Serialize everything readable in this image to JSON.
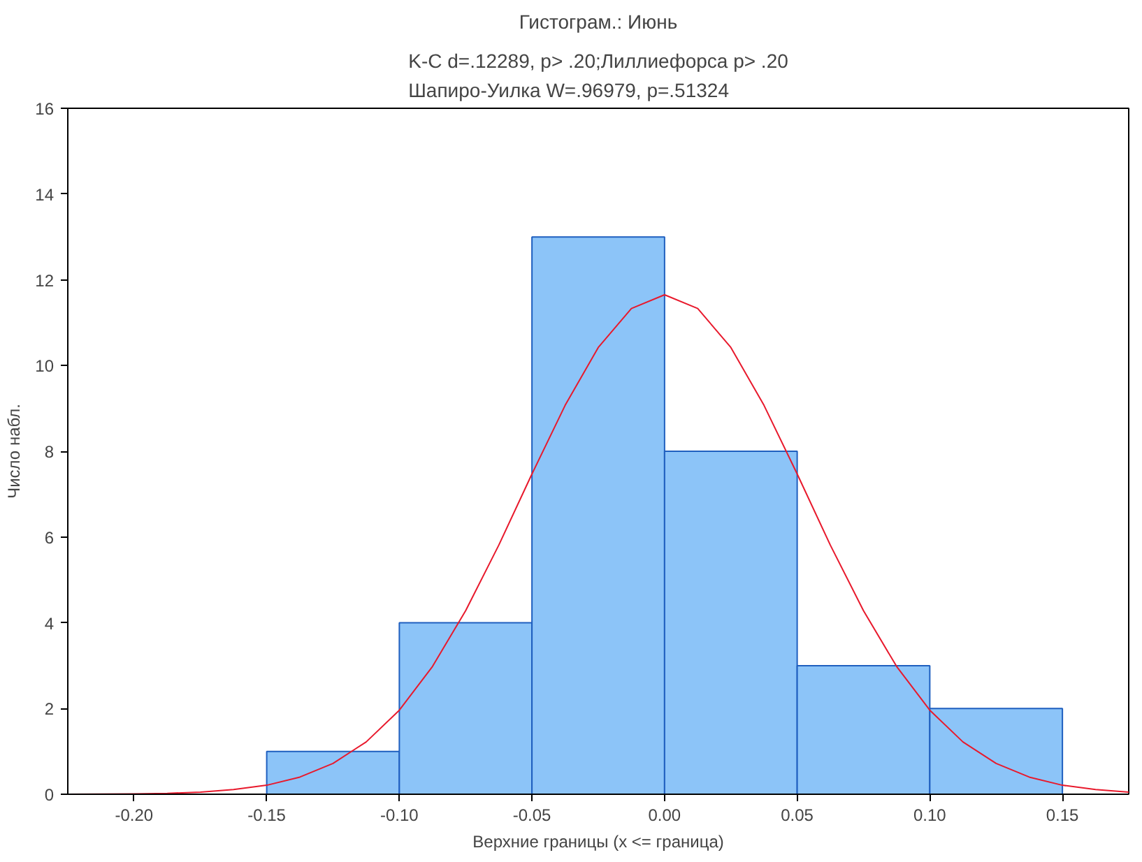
{
  "chart_data": {
    "type": "histogram",
    "title": "Гистограм.: Июнь",
    "subtitle": "K-C d=.12289, p> .20;Лиллиефорса p> .20\nШапиро-Уилка W=.96979, p=.51324",
    "xlabel": "Верхние границы (x <= граница)",
    "ylabel": "Число набл.",
    "bins": [
      -0.15,
      -0.1,
      -0.05,
      0.0,
      0.05,
      0.1,
      0.15
    ],
    "values": [
      1,
      4,
      13,
      8,
      3,
      2
    ],
    "color": "#8cc4f8",
    "series": [
      {
        "type": "line",
        "color": "#e8192c",
        "x": [
          -0.225,
          -0.2,
          -0.1875,
          -0.175,
          -0.1625,
          -0.15,
          -0.1375,
          -0.125,
          -0.1125,
          -0.1,
          -0.0875,
          -0.075,
          -0.0625,
          -0.05,
          -0.0375,
          -0.025,
          -0.0125,
          0.0,
          0.0125,
          0.025,
          0.0375,
          0.05,
          0.0625,
          0.075,
          0.0875,
          0.1,
          0.1125,
          0.125,
          0.1375,
          0.15,
          0.1625,
          0.175
        ],
        "values": [
          0.0,
          0.01,
          0.02,
          0.05,
          0.11,
          0.21,
          0.4,
          0.72,
          1.22,
          1.96,
          2.98,
          4.28,
          5.81,
          7.47,
          9.07,
          10.42,
          11.33,
          11.65,
          11.33,
          10.42,
          9.07,
          7.47,
          5.81,
          4.28,
          2.98,
          1.96,
          1.22,
          0.72,
          0.4,
          0.21,
          0.11,
          0.05
        ]
      }
    ],
    "xlim": [
      -0.225,
      0.175
    ],
    "ylim": [
      0,
      16
    ],
    "xticks": [
      {
        "value": -0.2,
        "label": "-0.20"
      },
      {
        "value": -0.15,
        "label": "-0.15"
      },
      {
        "value": -0.1,
        "label": "-0.10"
      },
      {
        "value": -0.05,
        "label": "-0.05"
      },
      {
        "value": 0.0,
        "label": "0.00"
      },
      {
        "value": 0.05,
        "label": "0.05"
      },
      {
        "value": 0.1,
        "label": "0.10"
      },
      {
        "value": 0.15,
        "label": "0.15"
      }
    ],
    "yticks": [
      0,
      2,
      4,
      6,
      8,
      10,
      12,
      14,
      16
    ],
    "grid": false
  }
}
